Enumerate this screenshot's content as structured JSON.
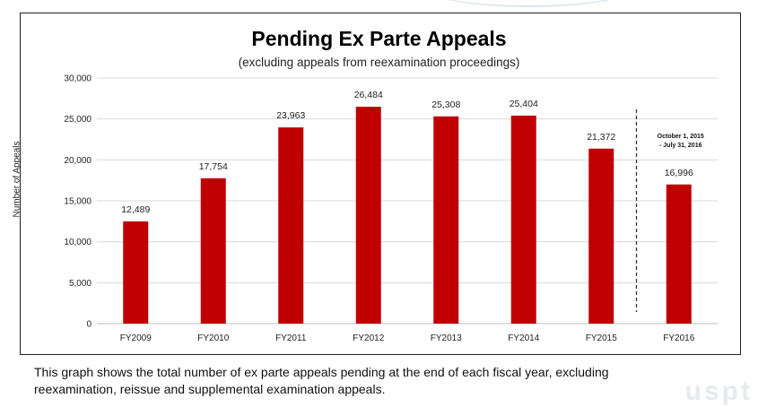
{
  "chart_data": {
    "type": "bar",
    "title": "Pending Ex Parte Appeals",
    "subtitle": "(excluding appeals from reexamination proceedings)",
    "ylabel": "Number of Appeals",
    "xlabel": "",
    "categories": [
      "FY2009",
      "FY2010",
      "FY2011",
      "FY2012",
      "FY2013",
      "FY2014",
      "FY2015",
      "FY2016"
    ],
    "values": [
      12489,
      17754,
      23963,
      26484,
      25308,
      25404,
      21372,
      16996
    ],
    "value_labels": [
      "12,489",
      "17,754",
      "23,963",
      "26,484",
      "25,308",
      "25,404",
      "21,372",
      "16,996"
    ],
    "ylim": [
      0,
      30000
    ],
    "yticks": [
      0,
      5000,
      10000,
      15000,
      20000,
      25000,
      30000
    ],
    "ytick_labels": [
      "0",
      "5,000",
      "10,000",
      "15,000",
      "20,000",
      "25,000",
      "30,000"
    ],
    "grid": true,
    "bar_color": "#c00000",
    "annotation": {
      "lines": [
        "October 1, 2015",
        "- July 31, 2016"
      ],
      "separator": "dashed vertical line between FY2015 and FY2016"
    }
  },
  "caption": "This graph shows the total number of ex parte appeals pending at the end of each fiscal year, excluding reexamination, reissue and supplemental examination appeals.",
  "watermark": "uspt"
}
